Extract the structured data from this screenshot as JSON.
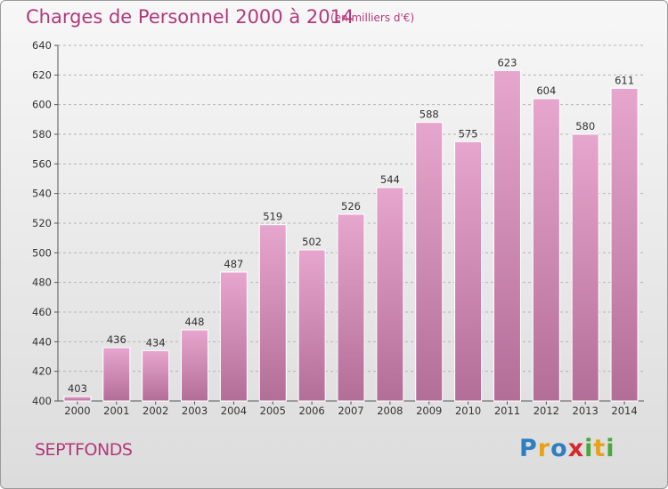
{
  "header": {
    "title": "Charges de Personnel 2000 à 2014",
    "subtitle": "(en milliers d'€)"
  },
  "footer": {
    "commune": "SEPTFONDS",
    "logo": {
      "text": "Proxiti",
      "letters": [
        {
          "char": "P",
          "color": "#2e7fc0"
        },
        {
          "char": "r",
          "color": "#e8a21a"
        },
        {
          "char": "o",
          "color": "#2e7fc0"
        },
        {
          "char": "x",
          "color": "#d8262f"
        },
        {
          "char": "i",
          "color": "#4aa83a"
        },
        {
          "char": "t",
          "color": "#e8a21a"
        },
        {
          "char": "i",
          "color": "#4aa83a"
        }
      ]
    }
  },
  "colors": {
    "title": "#b3387a",
    "bar_top": "#e7a6cd",
    "bar_bottom": "#b36e98",
    "bar_edge": "#ffffff"
  },
  "chart_data": {
    "type": "bar",
    "categories": [
      "2000",
      "2001",
      "2002",
      "2003",
      "2004",
      "2005",
      "2006",
      "2007",
      "2008",
      "2009",
      "2010",
      "2011",
      "2012",
      "2013",
      "2014"
    ],
    "values": [
      403,
      436,
      434,
      448,
      487,
      519,
      502,
      526,
      544,
      588,
      575,
      623,
      604,
      580,
      611
    ],
    "ylim": [
      400,
      640
    ],
    "yticks": [
      400,
      420,
      440,
      460,
      480,
      500,
      520,
      540,
      560,
      580,
      600,
      620,
      640
    ],
    "grid": "horizontal-dashed",
    "legend": "none"
  }
}
